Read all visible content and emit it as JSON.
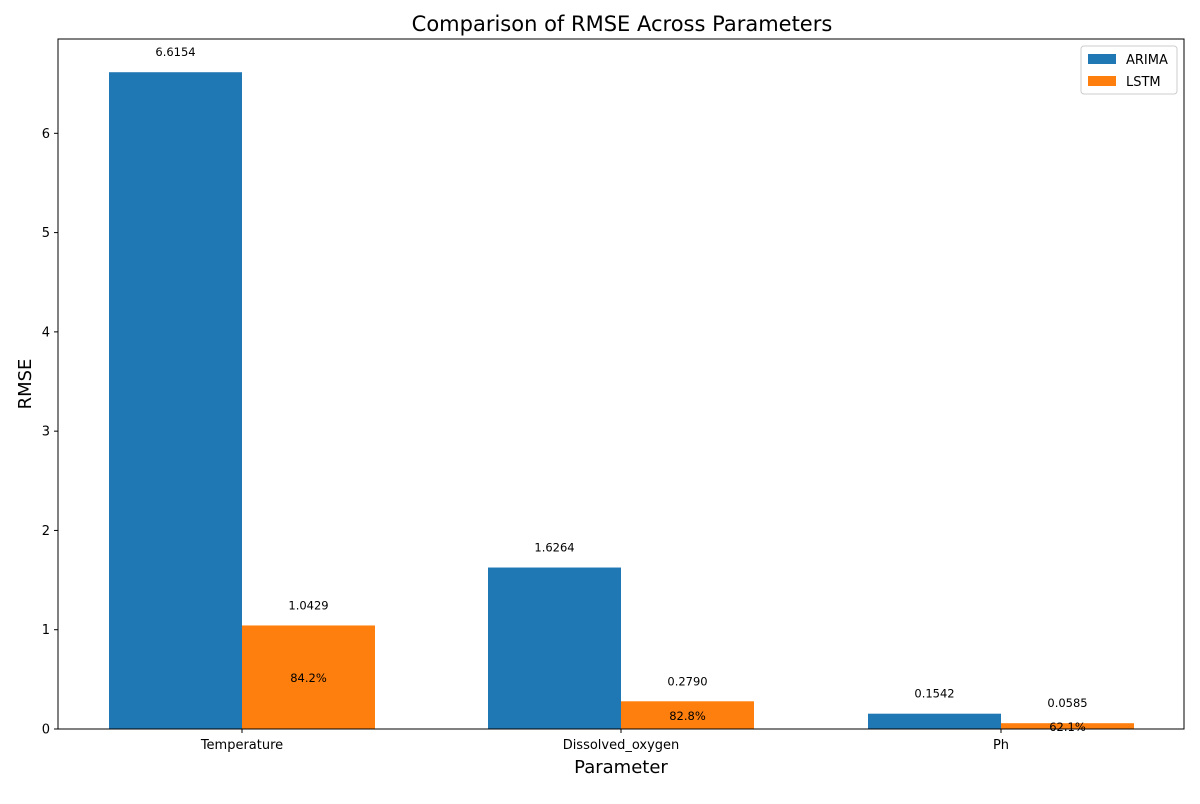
{
  "chart_data": {
    "type": "bar",
    "title": "Comparison of RMSE Across Parameters",
    "xlabel": "Parameter",
    "ylabel": "RMSE",
    "categories": [
      "Temperature",
      "Dissolved_oxygen",
      "Ph"
    ],
    "series": [
      {
        "name": "ARIMA",
        "color": "#1f77b4",
        "values": [
          6.6154,
          1.6264,
          0.1542
        ],
        "labels": [
          "6.6154",
          "1.6264",
          "0.1542"
        ]
      },
      {
        "name": "LSTM",
        "color": "#ff7f0e",
        "values": [
          1.0429,
          0.279,
          0.0585
        ],
        "labels": [
          "1.0429",
          "0.2790",
          "0.0585"
        ]
      }
    ],
    "improvement_labels": [
      "84.2%",
      "82.8%",
      "62.1%"
    ],
    "ylim": [
      0,
      6.95
    ],
    "yticks": [
      0,
      1,
      2,
      3,
      4,
      5,
      6
    ],
    "grid": false,
    "legend_position": "top-right"
  }
}
